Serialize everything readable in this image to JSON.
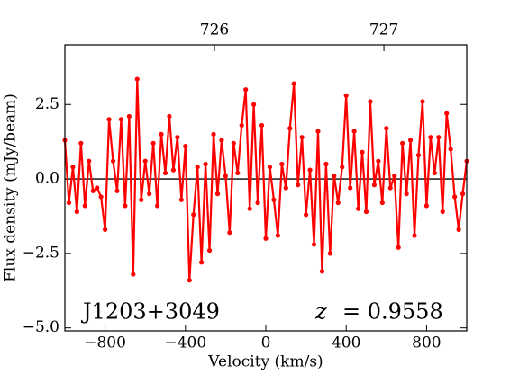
{
  "chart_data": {
    "type": "line",
    "xlabel": "Velocity (km/s)",
    "ylabel": "Flux density (mJy/beam)",
    "x": [
      -1000,
      -980,
      -960,
      -940,
      -920,
      -900,
      -880,
      -860,
      -840,
      -820,
      -800,
      -780,
      -760,
      -740,
      -720,
      -700,
      -680,
      -660,
      -640,
      -620,
      -600,
      -580,
      -560,
      -540,
      -520,
      -500,
      -480,
      -460,
      -440,
      -420,
      -400,
      -380,
      -360,
      -340,
      -320,
      -300,
      -280,
      -260,
      -240,
      -220,
      -200,
      -180,
      -160,
      -140,
      -120,
      -100,
      -80,
      -60,
      -40,
      -20,
      0,
      20,
      40,
      60,
      80,
      100,
      120,
      140,
      160,
      180,
      200,
      220,
      240,
      260,
      280,
      300,
      320,
      340,
      360,
      380,
      400,
      420,
      440,
      460,
      480,
      500,
      520,
      540,
      560,
      580,
      600,
      620,
      640,
      660,
      680,
      700,
      720,
      740,
      760,
      780,
      800,
      820,
      840,
      860,
      880,
      900,
      920,
      940,
      960,
      980,
      1000
    ],
    "series": [
      {
        "color": "#ff0000",
        "values": [
          1.3,
          -0.8,
          0.4,
          -1.1,
          1.2,
          -0.9,
          0.6,
          -0.4,
          -0.3,
          -0.6,
          -1.7,
          2.0,
          0.6,
          -0.4,
          2.0,
          -0.9,
          2.1,
          -3.2,
          3.35,
          -0.7,
          0.6,
          -0.5,
          1.2,
          -0.9,
          1.5,
          0.2,
          2.1,
          0.3,
          1.4,
          -0.7,
          1.1,
          -3.4,
          -1.2,
          0.4,
          -2.8,
          0.5,
          -2.4,
          1.5,
          -0.5,
          1.3,
          0.1,
          -1.8,
          1.2,
          0.2,
          1.8,
          3.0,
          -1.0,
          2.5,
          -0.8,
          1.8,
          -2.0,
          0.4,
          -0.7,
          -1.9,
          0.5,
          -0.3,
          1.7,
          3.2,
          -0.2,
          1.4,
          -1.2,
          0.3,
          -2.2,
          1.6,
          -3.1,
          0.5,
          -2.5,
          0.1,
          -0.8,
          0.4,
          2.8,
          -0.3,
          1.6,
          -1.0,
          0.9,
          -1.1,
          2.6,
          -0.2,
          0.6,
          -0.8,
          1.7,
          -0.3,
          0.1,
          -2.3,
          1.2,
          -0.5,
          1.3,
          -1.9,
          0.8,
          2.6,
          -0.9,
          1.4,
          0.2,
          1.4,
          -1.1,
          2.2,
          1.0,
          -0.6,
          -1.7,
          -0.5,
          0.6
        ]
      }
    ],
    "xlim": [
      -1000,
      1000
    ],
    "xticks": [
      {
        "value": -800,
        "label": "−800"
      },
      {
        "value": -400,
        "label": "−400"
      },
      0,
      400,
      800
    ],
    "ylim": [
      -5.1,
      4.5
    ],
    "yticks": [
      {
        "value": -5,
        "label": "−5.0"
      },
      {
        "value": -2.5,
        "label": "−2.5"
      },
      {
        "value": 0,
        "label": "0.0"
      },
      2.5
    ],
    "x2lim": [
      725.117,
      727.489
    ],
    "x2ticks": [
      726,
      727
    ],
    "hline": 0,
    "annotations": [
      "J1203+3049",
      "z",
      "= 0.9558"
    ]
  }
}
